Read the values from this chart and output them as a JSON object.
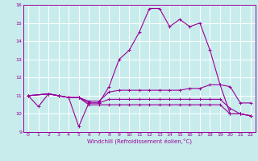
{
  "xlabel": "Windchill (Refroidissement éolien,°C)",
  "xlim": [
    -0.5,
    22.5
  ],
  "ylim": [
    9,
    16
  ],
  "yticks": [
    9,
    10,
    11,
    12,
    13,
    14,
    15,
    16
  ],
  "xticks": [
    0,
    1,
    2,
    3,
    4,
    5,
    6,
    7,
    8,
    9,
    10,
    11,
    12,
    13,
    14,
    15,
    16,
    17,
    18,
    19,
    20,
    21,
    22
  ],
  "bg_color": "#c8ecec",
  "line_color": "#990099",
  "curves": [
    {
      "x": [
        0,
        1,
        2,
        3,
        4,
        5,
        6,
        7,
        8,
        9,
        10,
        11,
        12,
        13,
        14,
        15,
        16,
        17,
        18,
        19,
        20,
        21,
        22
      ],
      "y": [
        11.0,
        10.4,
        11.1,
        11.0,
        10.9,
        9.3,
        10.6,
        10.6,
        11.5,
        13.0,
        13.5,
        14.5,
        15.8,
        15.8,
        14.8,
        15.2,
        14.8,
        15.0,
        13.5,
        11.6,
        10.0,
        10.0,
        9.9
      ]
    },
    {
      "x": [
        0,
        2,
        3,
        4,
        5,
        6,
        7,
        8,
        9,
        10,
        11,
        12,
        13,
        14,
        15,
        16,
        17,
        18,
        19,
        20,
        21,
        22
      ],
      "y": [
        11.0,
        11.1,
        11.0,
        10.9,
        10.9,
        10.7,
        10.7,
        11.2,
        11.3,
        11.3,
        11.3,
        11.3,
        11.3,
        11.3,
        11.3,
        11.4,
        11.4,
        11.6,
        11.6,
        11.5,
        10.6,
        10.6
      ]
    },
    {
      "x": [
        0,
        2,
        3,
        4,
        5,
        6,
        7,
        8,
        9,
        10,
        11,
        12,
        13,
        14,
        15,
        16,
        17,
        18,
        19,
        20,
        21,
        22
      ],
      "y": [
        11.0,
        11.1,
        11.0,
        10.9,
        10.9,
        10.6,
        10.6,
        10.8,
        10.8,
        10.8,
        10.8,
        10.8,
        10.8,
        10.8,
        10.8,
        10.8,
        10.8,
        10.8,
        10.8,
        10.3,
        10.0,
        9.9
      ]
    },
    {
      "x": [
        0,
        2,
        3,
        4,
        5,
        6,
        7,
        8,
        9,
        10,
        11,
        12,
        13,
        14,
        15,
        16,
        17,
        18,
        19,
        20,
        21,
        22
      ],
      "y": [
        11.0,
        11.1,
        11.0,
        10.9,
        10.9,
        10.5,
        10.5,
        10.5,
        10.5,
        10.5,
        10.5,
        10.5,
        10.5,
        10.5,
        10.5,
        10.5,
        10.5,
        10.5,
        10.5,
        10.0,
        10.0,
        9.9
      ]
    }
  ]
}
